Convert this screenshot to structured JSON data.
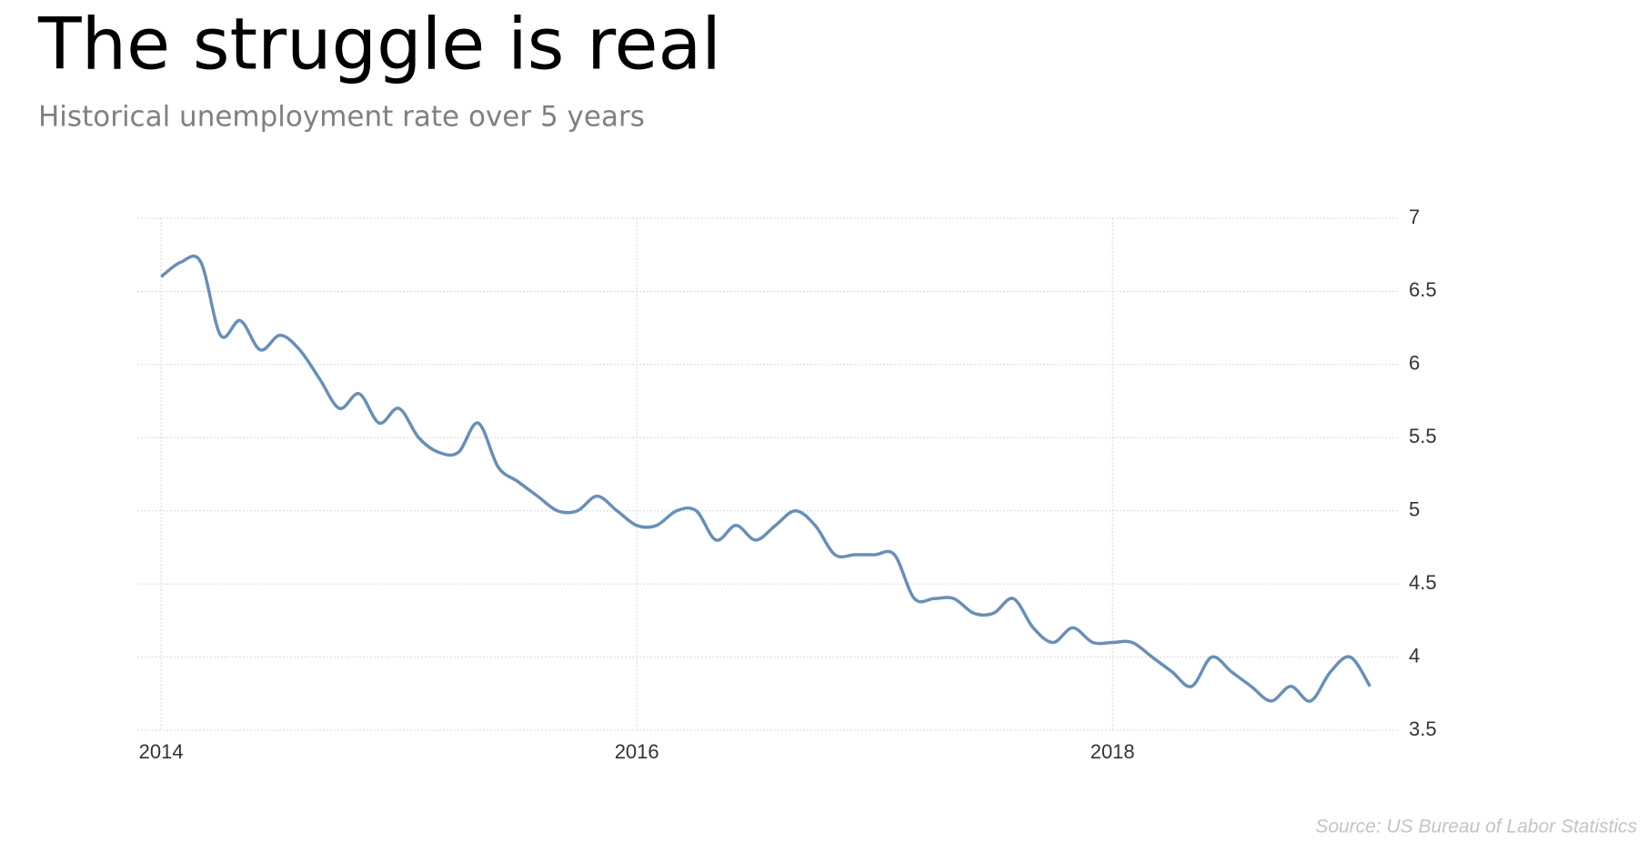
{
  "chart_data": {
    "type": "line",
    "title": "The struggle is real",
    "subtitle": "Historical unemployment rate over 5 years",
    "source": "Source: US Bureau of Labor Statistics",
    "x": [
      2014,
      2014.083,
      2014.167,
      2014.25,
      2014.333,
      2014.417,
      2014.5,
      2014.583,
      2014.667,
      2014.75,
      2014.833,
      2014.917,
      2015,
      2015.083,
      2015.167,
      2015.25,
      2015.333,
      2015.417,
      2015.5,
      2015.583,
      2015.667,
      2015.75,
      2015.833,
      2015.917,
      2016,
      2016.083,
      2016.167,
      2016.25,
      2016.333,
      2016.417,
      2016.5,
      2016.583,
      2016.667,
      2016.75,
      2016.833,
      2016.917,
      2017,
      2017.083,
      2017.167,
      2017.25,
      2017.333,
      2017.417,
      2017.5,
      2017.583,
      2017.667,
      2017.75,
      2017.833,
      2017.917,
      2018,
      2018.083,
      2018.167,
      2018.25,
      2018.333,
      2018.417,
      2018.5,
      2018.583,
      2018.667,
      2018.75,
      2018.833,
      2018.917,
      2019,
      2019.083
    ],
    "values": [
      6.6,
      6.7,
      6.7,
      6.2,
      6.3,
      6.1,
      6.2,
      6.1,
      5.9,
      5.7,
      5.8,
      5.6,
      5.7,
      5.5,
      5.4,
      5.4,
      5.6,
      5.3,
      5.2,
      5.1,
      5.0,
      5.0,
      5.1,
      5.0,
      4.9,
      4.9,
      5.0,
      5.0,
      4.8,
      4.9,
      4.8,
      4.9,
      5.0,
      4.9,
      4.7,
      4.7,
      4.7,
      4.7,
      4.4,
      4.4,
      4.4,
      4.3,
      4.3,
      4.4,
      4.2,
      4.1,
      4.2,
      4.1,
      4.1,
      4.1,
      4.0,
      3.9,
      3.8,
      4.0,
      3.9,
      3.8,
      3.7,
      3.8,
      3.7,
      3.9,
      4.0,
      3.8
    ],
    "color": "#6a8fb6",
    "xlim": [
      2013.9,
      2019.2
    ],
    "xticks": [
      2014,
      2016,
      2018
    ],
    "ylim": [
      3.5,
      7
    ],
    "yticks": [
      3.5,
      4,
      4.5,
      5,
      5.5,
      6,
      6.5,
      7
    ],
    "y_axis_side": "right",
    "grid": true
  }
}
